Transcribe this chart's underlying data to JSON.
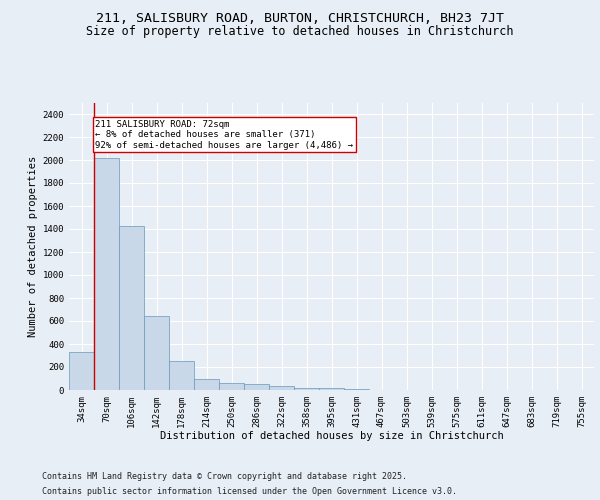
{
  "title1": "211, SALISBURY ROAD, BURTON, CHRISTCHURCH, BH23 7JT",
  "title2": "Size of property relative to detached houses in Christchurch",
  "xlabel": "Distribution of detached houses by size in Christchurch",
  "ylabel": "Number of detached properties",
  "categories": [
    "34sqm",
    "70sqm",
    "106sqm",
    "142sqm",
    "178sqm",
    "214sqm",
    "250sqm",
    "286sqm",
    "322sqm",
    "358sqm",
    "395sqm",
    "431sqm",
    "467sqm",
    "503sqm",
    "539sqm",
    "575sqm",
    "611sqm",
    "647sqm",
    "683sqm",
    "719sqm",
    "755sqm"
  ],
  "values": [
    330,
    2020,
    1430,
    640,
    250,
    95,
    60,
    55,
    35,
    20,
    18,
    10,
    2,
    1,
    0,
    0,
    0,
    0,
    0,
    0,
    0
  ],
  "bar_color": "#c8d8e8",
  "bar_edge_color": "#6699bb",
  "vline_color": "#cc0000",
  "annotation_text": "211 SALISBURY ROAD: 72sqm\n← 8% of detached houses are smaller (371)\n92% of semi-detached houses are larger (4,486) →",
  "annotation_box_color": "#ffffff",
  "annotation_box_edge_color": "#cc0000",
  "bg_color": "#e8eef5",
  "plot_bg_color": "#e8eef5",
  "grid_color": "#ffffff",
  "footer_line1": "Contains HM Land Registry data © Crown copyright and database right 2025.",
  "footer_line2": "Contains public sector information licensed under the Open Government Licence v3.0.",
  "title_fontsize": 9.5,
  "subtitle_fontsize": 8.5,
  "axis_label_fontsize": 7.5,
  "tick_fontsize": 6.5,
  "footer_fontsize": 6,
  "ylim": [
    0,
    2500
  ],
  "yticks": [
    0,
    200,
    400,
    600,
    800,
    1000,
    1200,
    1400,
    1600,
    1800,
    2000,
    2200,
    2400
  ]
}
